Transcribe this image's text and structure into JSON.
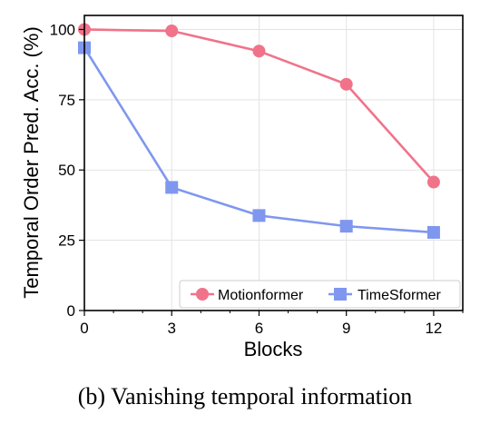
{
  "caption": "(b) Vanishing temporal information",
  "colors": {
    "motionformer": "#F0738A",
    "timesformer": "#7F97EE"
  },
  "chart_data": {
    "type": "line",
    "xlabel": "Blocks",
    "ylabel": "Temporal Order Pred. Acc. (%)",
    "xlim": [
      0,
      13
    ],
    "ylim": [
      0,
      105
    ],
    "xticks": [
      0,
      3,
      6,
      9,
      12
    ],
    "yticks": [
      0,
      25,
      50,
      75,
      100
    ],
    "grid": true,
    "legend": "bottom-right",
    "x": [
      0,
      3,
      6,
      9,
      12
    ],
    "series": [
      {
        "name": "Motionformer",
        "values": [
          100,
          99.5,
          92.3,
          80.5,
          45.7
        ],
        "marker": "circle"
      },
      {
        "name": "TimeSformer",
        "values": [
          93.5,
          43.8,
          33.8,
          30,
          27.8
        ],
        "marker": "square"
      }
    ]
  }
}
